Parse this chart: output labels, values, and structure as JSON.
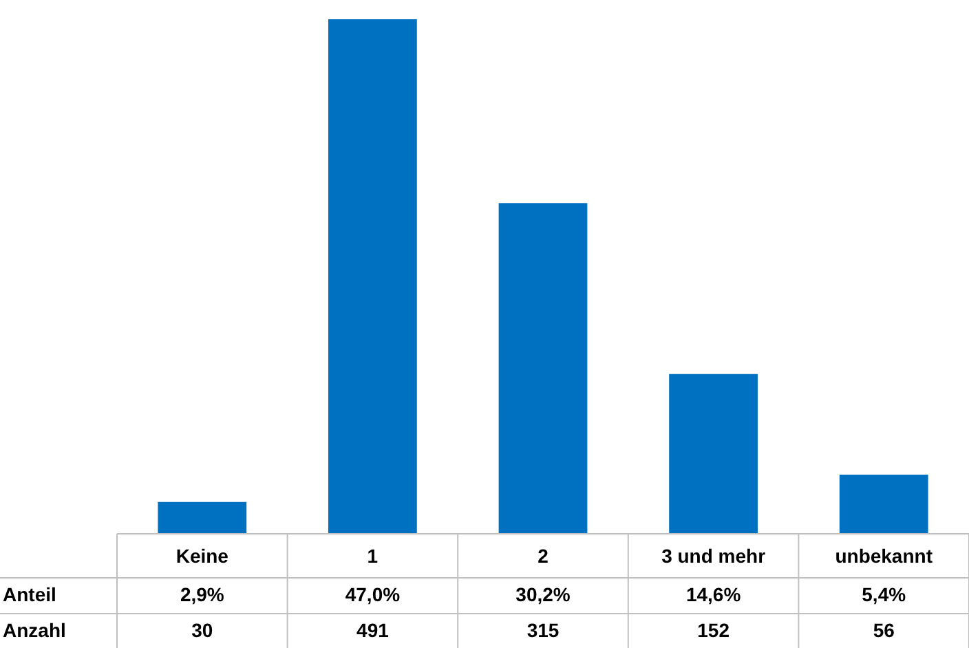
{
  "chart_data": {
    "type": "bar",
    "categories": [
      "Keine",
      "1",
      "2",
      "3 und mehr",
      "unbekannt"
    ],
    "values": [
      2.9,
      47.0,
      30.2,
      14.6,
      5.4
    ],
    "value_labels": [
      "2,9%",
      "47,0%",
      "30,2%",
      "14,6%",
      "5,4%"
    ],
    "color": "#0070c0",
    "annotations": [
      "Anteil",
      "Anzahl",
      "30",
      "491",
      "315",
      "152",
      "56"
    ]
  }
}
